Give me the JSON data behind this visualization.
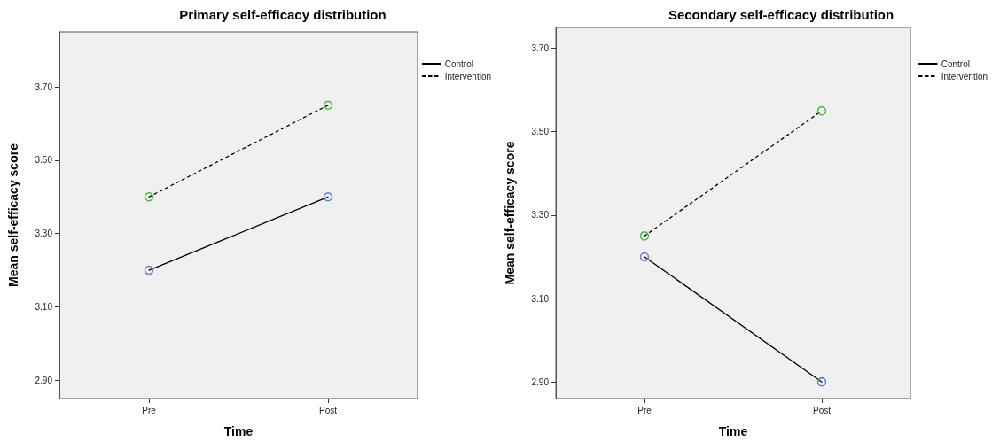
{
  "chart_data": [
    {
      "type": "line",
      "title": "Primary self-efficacy distribution",
      "xlabel": "Time",
      "ylabel": "Mean self-efficacy score",
      "categories": [
        "Pre",
        "Post"
      ],
      "ylim": [
        2.85,
        3.85
      ],
      "yticks": [
        {
          "value": 2.9,
          "label": "2.90"
        },
        {
          "value": 3.1,
          "label": "3.10"
        },
        {
          "value": 3.3,
          "label": "3.30"
        },
        {
          "value": 3.5,
          "label": "3.50"
        },
        {
          "value": 3.7,
          "label": "3.70"
        }
      ],
      "grid": false,
      "legend": "top right",
      "marker": "circle",
      "series": [
        {
          "name": "Control",
          "color": "#000000",
          "colors": [
            "#6c7fc4",
            "#6c7fc4"
          ],
          "line_style": "solid",
          "values": [
            3.2,
            3.4
          ]
        },
        {
          "name": "Intervention",
          "color": "#000000",
          "colors": [
            "#4cb84c",
            "#4cb84c"
          ],
          "line_style": "dashed",
          "values": [
            3.4,
            3.65
          ]
        }
      ]
    },
    {
      "type": "line",
      "title": "Secondary self-efficacy distribution",
      "xlabel": "Time",
      "ylabel": "Mean self-efficacy score",
      "categories": [
        "Pre",
        "Post"
      ],
      "ylim": [
        2.86,
        3.75
      ],
      "yticks": [
        {
          "value": 2.9,
          "label": "2.90"
        },
        {
          "value": 3.1,
          "label": "3.10"
        },
        {
          "value": 3.3,
          "label": "3.30"
        },
        {
          "value": 3.5,
          "label": "3.50"
        },
        {
          "value": 3.7,
          "label": "3.70"
        }
      ],
      "grid": false,
      "legend": "top right",
      "marker": "circle",
      "series": [
        {
          "name": "Control",
          "color": "#000000",
          "colors": [
            "#6c7fc4",
            "#6c7fc4"
          ],
          "line_style": "solid",
          "values": [
            3.2,
            2.9
          ]
        },
        {
          "name": "Intervention",
          "color": "#000000",
          "colors": [
            "#4cb84c",
            "#4cb84c"
          ],
          "line_style": "dashed",
          "values": [
            3.25,
            3.55
          ]
        }
      ]
    }
  ]
}
